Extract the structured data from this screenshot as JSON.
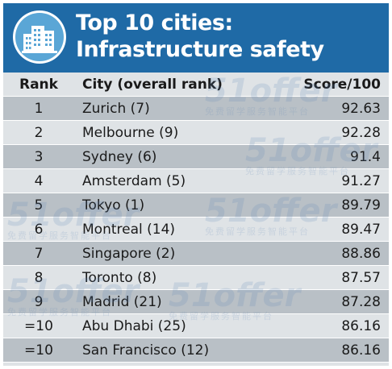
{
  "header": {
    "title_line1": "Top 10 cities:",
    "title_line2": "Infrastructure safety",
    "logo_icon": "building-icon",
    "background_color": "#1f6aa6"
  },
  "watermark": {
    "brand": "51offer",
    "tagline": "免费留学服务智能平台"
  },
  "chart_data": {
    "type": "table",
    "columns": [
      "Rank",
      "City (overall rank)",
      "Score/100"
    ],
    "rows": [
      {
        "rank": "1",
        "city": "Zurich (7)",
        "score": "92.63"
      },
      {
        "rank": "2",
        "city": "Melbourne (9)",
        "score": "92.28"
      },
      {
        "rank": "3",
        "city": "Sydney (6)",
        "score": "91.4"
      },
      {
        "rank": "4",
        "city": "Amsterdam (5)",
        "score": "91.27"
      },
      {
        "rank": "5",
        "city": "Tokyo (1)",
        "score": "89.79"
      },
      {
        "rank": "6",
        "city": "Montreal (14)",
        "score": "89.47"
      },
      {
        "rank": "7",
        "city": "Singapore (2)",
        "score": "88.86"
      },
      {
        "rank": "8",
        "city": "Toronto (8)",
        "score": "87.57"
      },
      {
        "rank": "9",
        "city": "Madrid (21)",
        "score": "87.28"
      },
      {
        "rank": "=10",
        "city": "Abu Dhabi (25)",
        "score": "86.16"
      },
      {
        "rank": "=10",
        "city": "San Francisco (12)",
        "score": "86.16"
      }
    ],
    "row_colors": [
      "#dfe3e6",
      "#b9c0c6"
    ]
  }
}
